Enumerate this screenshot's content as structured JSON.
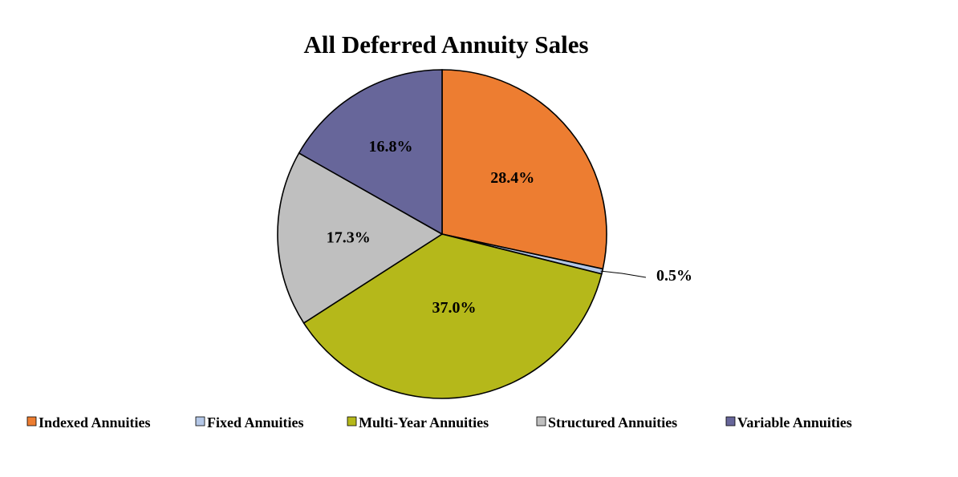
{
  "chart_data": {
    "type": "pie",
    "title": "All Deferred Annuity Sales",
    "categories": [
      "Indexed Annuities",
      "Fixed Annuities",
      "Multi-Year Annuities",
      "Structured Annuities",
      "Variable Annuities"
    ],
    "values": [
      28.4,
      0.5,
      37.0,
      17.3,
      16.8
    ],
    "labels": [
      "28.4%",
      "0.5%",
      "37.0%",
      "17.3%",
      "16.8%"
    ],
    "colors": [
      "#ED7D31",
      "#B4C7E7",
      "#B5B81A",
      "#BFBFBF",
      "#67669A"
    ],
    "legend_position": "bottom",
    "start_angle": "12 o'clock",
    "direction": "clockwise"
  }
}
